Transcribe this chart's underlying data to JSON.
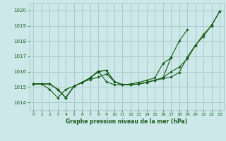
{
  "bg_color": "#cce8e8",
  "grid_color": "#aacccc",
  "line_color": "#1a5c1a",
  "xlabel": "Graphe pression niveau de la mer (hPa)",
  "ylim": [
    1013.5,
    1020.5
  ],
  "xlim": [
    -0.5,
    23.5
  ],
  "yticks": [
    1014,
    1015,
    1016,
    1017,
    1018,
    1019,
    1020
  ],
  "xticks": [
    0,
    1,
    2,
    3,
    4,
    5,
    6,
    7,
    8,
    9,
    10,
    11,
    12,
    13,
    14,
    15,
    16,
    17,
    18,
    19,
    20,
    21,
    22,
    23
  ],
  "line1": [
    1015.2,
    1015.2,
    1015.2,
    1014.85,
    1014.3,
    1015.05,
    1015.3,
    1015.5,
    1015.65,
    1015.85,
    1015.35,
    1015.15,
    1015.15,
    1015.2,
    1015.3,
    1015.45,
    1015.55,
    1015.65,
    1015.95,
    1016.95,
    1017.75,
    1018.3,
    1019.05,
    1019.95
  ],
  "line2": [
    1015.2,
    1015.2,
    1015.2,
    1014.85,
    1014.3,
    1015.05,
    1015.3,
    1015.6,
    1016.0,
    1016.1,
    1015.35,
    1015.15,
    1015.15,
    1015.2,
    1015.3,
    1015.45,
    1015.6,
    1016.0,
    1016.3,
    1016.85,
    1017.7,
    1018.45,
    1019.0,
    1019.95
  ],
  "line3": [
    1015.2,
    1015.2,
    1015.2,
    1014.85,
    1014.3,
    1015.05,
    1015.3,
    1015.6,
    1016.0,
    1016.1,
    1015.35,
    1015.15,
    1015.15,
    1015.2,
    1015.3,
    1015.45,
    1015.6,
    1016.95,
    1018.0,
    1018.75,
    null,
    null,
    null,
    null
  ],
  "line4": [
    1015.2,
    1015.2,
    1014.85,
    1014.3,
    1014.85,
    1015.05,
    1015.3,
    1015.6,
    1016.05,
    1015.35,
    1015.15,
    1015.15,
    1015.2,
    1015.3,
    1015.45,
    1015.6,
    1016.55,
    1016.9,
    null,
    null,
    null,
    null,
    null,
    null
  ]
}
